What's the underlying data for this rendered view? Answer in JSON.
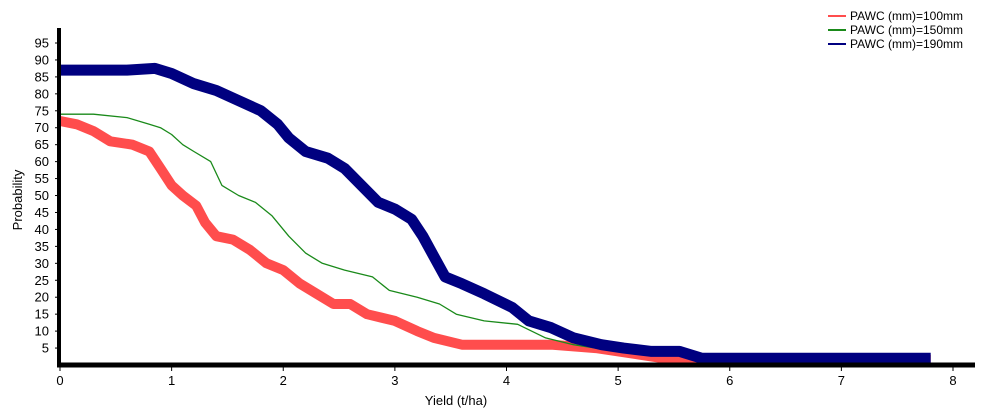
{
  "chart_data": {
    "type": "line",
    "xlabel": "Yield (t/ha)",
    "ylabel": "Probability",
    "xlim": [
      0,
      8
    ],
    "ylim": [
      0,
      97
    ],
    "x_ticks": [
      "0",
      "1",
      "2",
      "3",
      "4",
      "5",
      "6",
      "7",
      "8"
    ],
    "y_ticks": [
      "5",
      "10",
      "15",
      "20",
      "25",
      "30",
      "35",
      "40",
      "45",
      "50",
      "55",
      "60",
      "65",
      "70",
      "75",
      "80",
      "85",
      "90",
      "95"
    ],
    "grid": false,
    "legend_position": "top-right",
    "series": [
      {
        "name": "PAWC (mm)=100mm",
        "color": "#ff4d4d",
        "points": [
          [
            0,
            72
          ],
          [
            0.15,
            71
          ],
          [
            0.3,
            69
          ],
          [
            0.45,
            66
          ],
          [
            0.65,
            65
          ],
          [
            0.8,
            63
          ],
          [
            0.9,
            58
          ],
          [
            1.0,
            53
          ],
          [
            1.1,
            50
          ],
          [
            1.22,
            47
          ],
          [
            1.3,
            42
          ],
          [
            1.4,
            38
          ],
          [
            1.55,
            37
          ],
          [
            1.7,
            34
          ],
          [
            1.85,
            30
          ],
          [
            2.0,
            28
          ],
          [
            2.15,
            24
          ],
          [
            2.3,
            21
          ],
          [
            2.45,
            18
          ],
          [
            2.6,
            18
          ],
          [
            2.75,
            15
          ],
          [
            3.0,
            13
          ],
          [
            3.2,
            10
          ],
          [
            3.35,
            8
          ],
          [
            3.6,
            6
          ],
          [
            4.0,
            6
          ],
          [
            4.4,
            6
          ],
          [
            4.8,
            5
          ],
          [
            5.2,
            3
          ],
          [
            5.6,
            1
          ],
          [
            6.0,
            2
          ],
          [
            6.5,
            2
          ],
          [
            7.0,
            2
          ],
          [
            7.8,
            1.5
          ]
        ]
      },
      {
        "name": "PAWC (mm)=150mm",
        "color": "#1a8a1a",
        "points": [
          [
            0,
            74
          ],
          [
            0.3,
            74
          ],
          [
            0.6,
            73
          ],
          [
            0.8,
            71
          ],
          [
            0.9,
            70
          ],
          [
            1.0,
            68
          ],
          [
            1.1,
            65
          ],
          [
            1.2,
            63
          ],
          [
            1.35,
            60
          ],
          [
            1.45,
            53
          ],
          [
            1.6,
            50
          ],
          [
            1.75,
            48
          ],
          [
            1.9,
            44
          ],
          [
            2.05,
            38
          ],
          [
            2.2,
            33
          ],
          [
            2.35,
            30
          ],
          [
            2.55,
            28
          ],
          [
            2.8,
            26
          ],
          [
            2.95,
            22
          ],
          [
            3.2,
            20
          ],
          [
            3.4,
            18
          ],
          [
            3.55,
            15
          ],
          [
            3.8,
            13
          ],
          [
            4.1,
            12
          ],
          [
            4.35,
            8
          ],
          [
            4.6,
            6
          ],
          [
            4.8,
            5
          ],
          [
            5.0,
            4
          ]
        ]
      },
      {
        "name": "PAWC (mm)=190mm",
        "color": "#000080",
        "points": [
          [
            0,
            87
          ],
          [
            0.3,
            87
          ],
          [
            0.6,
            87
          ],
          [
            0.85,
            87.5
          ],
          [
            1.0,
            86
          ],
          [
            1.2,
            83
          ],
          [
            1.4,
            81
          ],
          [
            1.6,
            78
          ],
          [
            1.8,
            75
          ],
          [
            1.95,
            71
          ],
          [
            2.05,
            67
          ],
          [
            2.2,
            63
          ],
          [
            2.4,
            61
          ],
          [
            2.55,
            58
          ],
          [
            2.7,
            53
          ],
          [
            2.85,
            48
          ],
          [
            3.0,
            46
          ],
          [
            3.15,
            43
          ],
          [
            3.25,
            38
          ],
          [
            3.35,
            32
          ],
          [
            3.45,
            26
          ],
          [
            3.6,
            24
          ],
          [
            3.8,
            21
          ],
          [
            4.05,
            17
          ],
          [
            4.2,
            13
          ],
          [
            4.4,
            11
          ],
          [
            4.6,
            8
          ],
          [
            4.85,
            6
          ],
          [
            5.05,
            5
          ],
          [
            5.3,
            4
          ],
          [
            5.55,
            4
          ],
          [
            5.75,
            2
          ],
          [
            6.2,
            2
          ],
          [
            6.8,
            2
          ],
          [
            7.3,
            2
          ],
          [
            7.8,
            2
          ]
        ]
      }
    ]
  }
}
